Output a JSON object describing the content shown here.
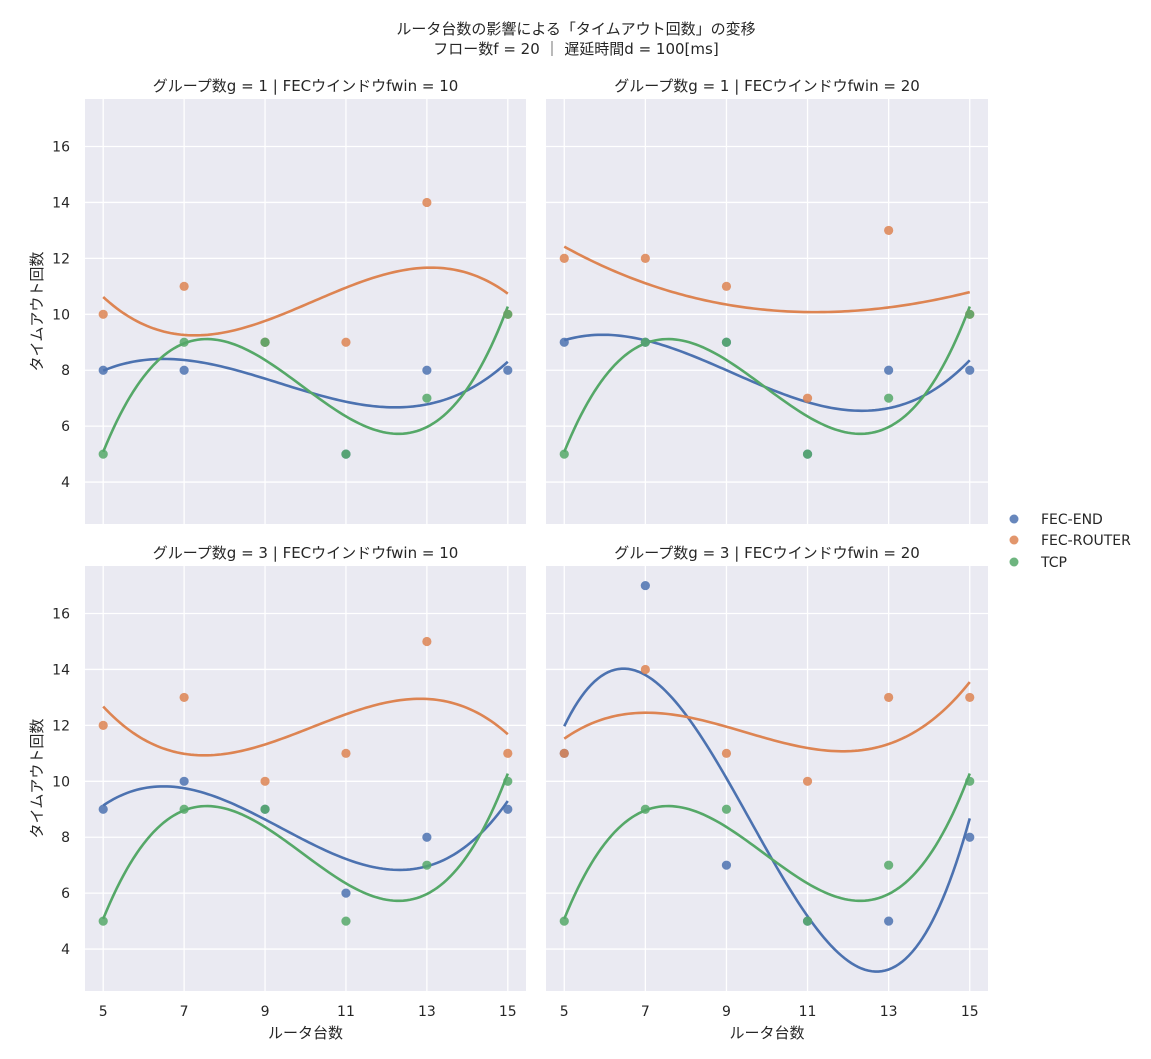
{
  "figure": {
    "title_line1": "ルータ台数の影響による「タイムアウト回数」の変移",
    "title_line2": "フロー数f = 20 ｜ 遅延時間d = 100[ms]"
  },
  "colors": {
    "FEC-END": "#4c72b0",
    "FEC-ROUTER": "#dd8452",
    "TCP": "#55a868",
    "panel_bg": "#eaeaf2",
    "grid": "#ffffff"
  },
  "legend": {
    "entries": [
      "FEC-END",
      "FEC-ROUTER",
      "TCP"
    ]
  },
  "chart_data": [
    {
      "type": "scatter",
      "title": "グループ数g = 1 | FECウインドウfwin = 10",
      "xlabel": "",
      "ylabel": "タイムアウト回数",
      "x": [
        5,
        7,
        9,
        11,
        13,
        15
      ],
      "xlim": [
        4.55,
        15.45
      ],
      "ylim": [
        2.5,
        17.7
      ],
      "xticks": [
        5,
        7,
        9,
        11,
        13,
        15
      ],
      "yticks": [
        4,
        6,
        8,
        10,
        12,
        14,
        16
      ],
      "fit": "cubic polynomial regression",
      "grid": true,
      "series": [
        {
          "name": "FEC-END",
          "values": [
            8,
            8,
            9,
            5,
            8,
            8
          ]
        },
        {
          "name": "FEC-ROUTER",
          "values": [
            10,
            11,
            9,
            9,
            14,
            10
          ]
        },
        {
          "name": "TCP",
          "values": [
            5,
            9,
            9,
            5,
            7,
            10
          ]
        }
      ]
    },
    {
      "type": "scatter",
      "title": "グループ数g = 1 | FECウインドウfwin = 20",
      "xlabel": "",
      "ylabel": "",
      "x": [
        5,
        7,
        9,
        11,
        13,
        15
      ],
      "xlim": [
        4.55,
        15.45
      ],
      "ylim": [
        2.5,
        17.7
      ],
      "xticks": [
        5,
        7,
        9,
        11,
        13,
        15
      ],
      "yticks": [
        4,
        6,
        8,
        10,
        12,
        14,
        16
      ],
      "fit": "cubic polynomial regression",
      "grid": true,
      "series": [
        {
          "name": "FEC-END",
          "values": [
            9,
            9,
            9,
            5,
            8,
            8
          ]
        },
        {
          "name": "FEC-ROUTER",
          "values": [
            12,
            12,
            11,
            7,
            13,
            10
          ]
        },
        {
          "name": "TCP",
          "values": [
            5,
            9,
            9,
            5,
            7,
            10
          ]
        }
      ]
    },
    {
      "type": "scatter",
      "title": "グループ数g = 3 | FECウインドウfwin = 10",
      "xlabel": "ルータ台数",
      "ylabel": "タイムアウト回数",
      "x": [
        5,
        7,
        9,
        11,
        13,
        15
      ],
      "xlim": [
        4.55,
        15.45
      ],
      "ylim": [
        2.5,
        17.7
      ],
      "xticks": [
        5,
        7,
        9,
        11,
        13,
        15
      ],
      "yticks": [
        4,
        6,
        8,
        10,
        12,
        14,
        16
      ],
      "fit": "cubic polynomial regression",
      "grid": true,
      "series": [
        {
          "name": "FEC-END",
          "values": [
            9,
            10,
            9,
            6,
            8,
            9
          ]
        },
        {
          "name": "FEC-ROUTER",
          "values": [
            12,
            13,
            10,
            11,
            15,
            11
          ]
        },
        {
          "name": "TCP",
          "values": [
            5,
            9,
            9,
            5,
            7,
            10
          ]
        }
      ]
    },
    {
      "type": "scatter",
      "title": "グループ数g = 3 | FECウインドウfwin = 20",
      "xlabel": "ルータ台数",
      "ylabel": "",
      "x": [
        5,
        7,
        9,
        11,
        13,
        15
      ],
      "xlim": [
        4.55,
        15.45
      ],
      "ylim": [
        2.5,
        17.7
      ],
      "xticks": [
        5,
        7,
        9,
        11,
        13,
        15
      ],
      "yticks": [
        4,
        6,
        8,
        10,
        12,
        14,
        16
      ],
      "fit": "cubic polynomial regression",
      "grid": true,
      "series": [
        {
          "name": "FEC-END",
          "values": [
            11,
            17,
            7,
            5,
            5,
            8
          ]
        },
        {
          "name": "FEC-ROUTER",
          "values": [
            11,
            14,
            11,
            10,
            13,
            13
          ]
        },
        {
          "name": "TCP",
          "values": [
            5,
            9,
            9,
            5,
            7,
            10
          ]
        }
      ]
    }
  ]
}
